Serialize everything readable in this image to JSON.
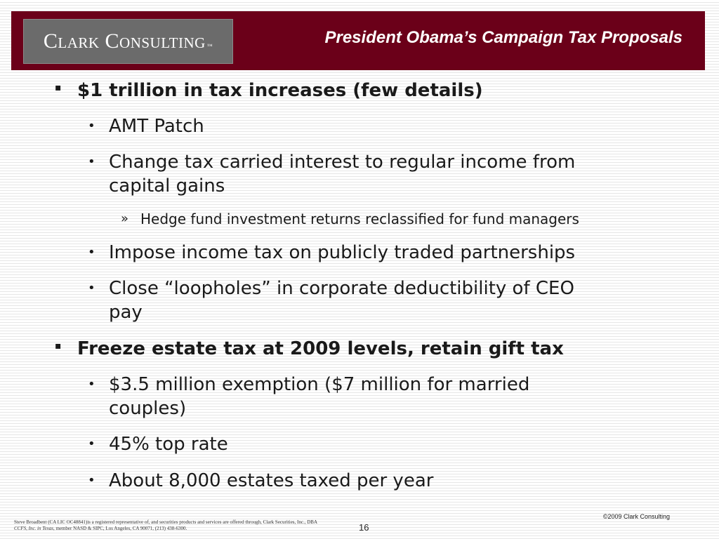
{
  "header": {
    "logo_text": "Clark Consulting",
    "logo_tm": "™",
    "title": "President Obama’s Campaign Tax Proposals",
    "background_color": "#6b0019"
  },
  "bullets": [
    {
      "text": "$1 trillion in tax increases (few details)",
      "marker": "▪"
    },
    {
      "text": "AMT Patch",
      "marker": "•"
    },
    {
      "text_line1": "Change tax carried interest to regular income from",
      "text_line2": "capital gains",
      "marker": "•"
    },
    {
      "text": "Hedge fund investment returns reclassified for fund managers",
      "marker": "»"
    },
    {
      "text": "Impose income tax on publicly traded partnerships",
      "marker": "•"
    },
    {
      "text_line1": "Close “loopholes” in corporate deductibility of CEO",
      "text_line2": "pay",
      "marker": "•"
    },
    {
      "text": "Freeze estate tax at 2009 levels, retain gift tax",
      "marker": "▪"
    },
    {
      "text_line1": "$3.5 million exemption ($7 million for married",
      "text_line2": "couples)",
      "marker": "•"
    },
    {
      "text": "45% top rate",
      "marker": "•"
    },
    {
      "text": "About 8,000 estates taxed per year",
      "marker": "•"
    }
  ],
  "footer": {
    "legal_line1": "Steve Broadbent  (CA LIC OC48841)is a registered representative of, and securities products and services are offered through, Clark Securities, Inc., DBA",
    "legal_line2_italic": "CCFS, Inc. in Texas",
    "legal_line2_rest": ", member NASD & SIPC, Los Angeles, CA  90071, (213) 438-6300.",
    "page_number": "16",
    "copyright": "©2009 Clark Consulting"
  }
}
